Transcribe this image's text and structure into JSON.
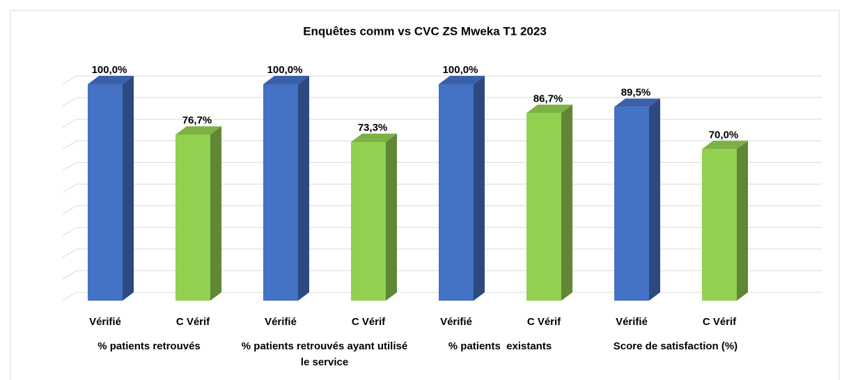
{
  "chart_data": {
    "type": "bar3d",
    "title": "Enquêtes comm vs CVC ZS Mweka T1 2023",
    "groups": [
      "% patients retrouvés",
      "% patients retrouvés ayant utilisé le service",
      "% patients  existants",
      "Score de satisfaction (%)"
    ],
    "series": [
      {
        "name": "Vérifié",
        "color": "#4472c4",
        "values": [
          100.0,
          100.0,
          100.0,
          89.5
        ],
        "value_labels": [
          "100,0%",
          "100,0%",
          "100,0%",
          "89,5%"
        ]
      },
      {
        "name": "C Vérif",
        "color": "#92d050",
        "values": [
          76.7,
          73.3,
          86.7,
          70.0
        ],
        "value_labels": [
          "76,7%",
          "73,3%",
          "86,7%",
          "70,0%"
        ]
      }
    ],
    "ylim": [
      0,
      100
    ],
    "yticks": [
      0,
      10,
      20,
      30,
      40,
      50,
      60,
      70,
      80,
      90,
      100
    ],
    "grid": true
  }
}
